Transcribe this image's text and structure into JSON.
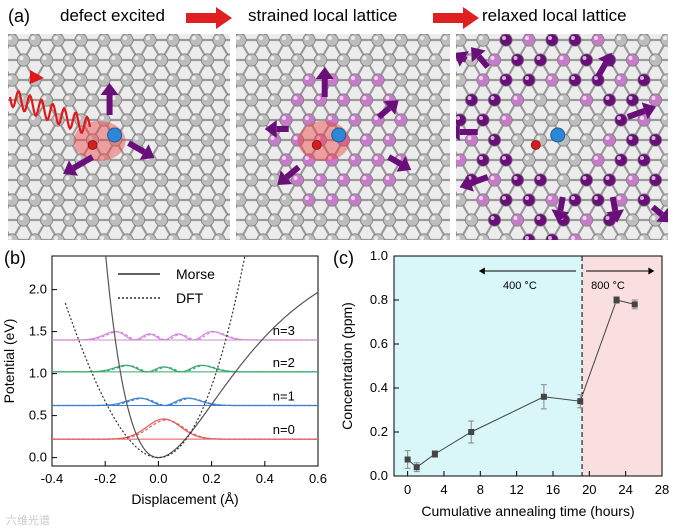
{
  "figure": {
    "panel_a": {
      "label": "(a)",
      "titles": [
        "defect excited",
        "strained local lattice",
        "relaxed local lattice"
      ]
    },
    "panel_b": {
      "label": "(b)"
    },
    "panel_c": {
      "label": "(c)"
    },
    "watermark": "六维光谱"
  },
  "colors": {
    "atom_gray": "#bdbdbd",
    "purple_dark": "#6a0f7a",
    "purple_light": "#c77cc9",
    "arrow_red": "#e02020",
    "defect_blue": "#2d86d6",
    "defect_red": "#d21f1f",
    "n0": "#e15a5a",
    "n1": "#3c7fd0",
    "n2": "#3aa870",
    "n3": "#d08ad8",
    "region_400": "#d9f6f8",
    "region_800": "#f9dfdf"
  },
  "chart_data": [
    {
      "type": "line",
      "panel": "b",
      "xlabel": "Displacement (Å)",
      "ylabel": "Potential (eV)",
      "xlim": [
        -0.4,
        0.6
      ],
      "ylim": [
        -0.1,
        2.4
      ],
      "x_ticks": [
        -0.4,
        -0.2,
        0.0,
        0.2,
        0.4,
        0.6
      ],
      "x_tick_labels": [
        "-0.4",
        "-0.2",
        "0.0",
        "0.2",
        "0.4",
        "0.6"
      ],
      "y_ticks": [
        0.0,
        0.5,
        1.0,
        1.5,
        2.0
      ],
      "y_tick_labels": [
        "0.0",
        "0.5",
        "1.0",
        "1.5",
        "2.0"
      ],
      "legend": [
        {
          "name": "Morse",
          "style": "solid"
        },
        {
          "name": "DFT",
          "style": "dotted"
        }
      ],
      "potential_wells": {
        "morse": {
          "De": 2.6,
          "a": 3.4,
          "r0": 0.0,
          "color": "#555555"
        },
        "dft": {
          "k": 19.0,
          "r0": 0.0,
          "color": "#333333"
        }
      },
      "levels": [
        {
          "label": "n=0",
          "energy": 0.22
        },
        {
          "label": "n=1",
          "energy": 0.62
        },
        {
          "label": "n=2",
          "energy": 1.02
        },
        {
          "label": "n=3",
          "energy": 1.4
        }
      ]
    },
    {
      "type": "line",
      "panel": "c",
      "xlabel": "Cumulative annealing time (hours)",
      "ylabel": "Concentration (ppm)",
      "xlim": [
        -1.5,
        28
      ],
      "ylim": [
        0.0,
        1.0
      ],
      "x_ticks": [
        0,
        4,
        8,
        12,
        16,
        20,
        24,
        28
      ],
      "x_tick_labels": [
        "0",
        "4",
        "8",
        "12",
        "16",
        "20",
        "24",
        "28"
      ],
      "y_ticks": [
        0.0,
        0.2,
        0.4,
        0.6,
        0.8,
        1.0
      ],
      "y_tick_labels": [
        "0.0",
        "0.2",
        "0.4",
        "0.6",
        "0.8",
        "1.0"
      ],
      "x": [
        0,
        1,
        3,
        7,
        15,
        19,
        23,
        25
      ],
      "y": [
        0.075,
        0.04,
        0.1,
        0.2,
        0.36,
        0.34,
        0.8,
        0.78
      ],
      "err": [
        0.04,
        0.02,
        0.015,
        0.05,
        0.055,
        0.03,
        0.015,
        0.02
      ],
      "regions": [
        {
          "label": "400 °C",
          "x0": -1.5,
          "x1": 19.2
        },
        {
          "label": "800 °C",
          "x0": 19.2,
          "x1": 28
        }
      ],
      "divider_x": 19.2
    }
  ]
}
